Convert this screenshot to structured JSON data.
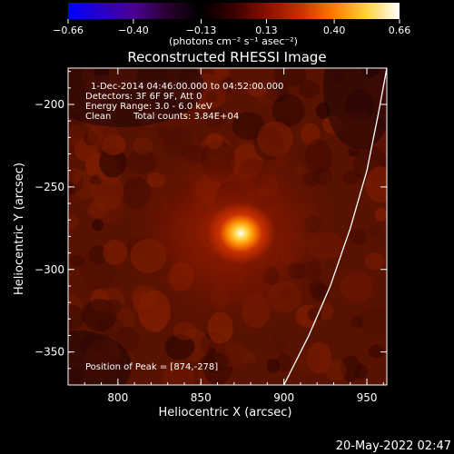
{
  "chart_data": {
    "type": "heatmap",
    "title": "Reconstructed RHESSI Image",
    "xlabel": "Heliocentric X (arcsec)",
    "ylabel": "Heliocentric Y (arcsec)",
    "xlim": [
      770,
      962
    ],
    "ylim": [
      -370,
      -178
    ],
    "x_ticks": [
      800,
      850,
      900,
      950
    ],
    "x_tick_labels": [
      "800",
      "850",
      "900",
      "950"
    ],
    "y_ticks": [
      -200,
      -250,
      -300,
      -350
    ],
    "y_tick_labels": [
      "−200",
      "−250",
      "−300",
      "−350"
    ],
    "colorbar": {
      "range": [
        -0.66,
        0.66
      ],
      "tick_values": [
        -0.66,
        -0.4,
        -0.13,
        0.13,
        0.4,
        0.66
      ],
      "tick_labels": [
        "−0.66",
        "−0.40",
        "−0.13",
        "0.13",
        "0.40",
        "0.66"
      ],
      "unit_label": "(photons cm⁻² s⁻¹ asec⁻²)",
      "colormap": [
        "#0000ff",
        "#2a00c8",
        "#4b0090",
        "#2a0030",
        "#000000",
        "#3a0000",
        "#8a1000",
        "#c83000",
        "#ff7a00",
        "#ffd23c",
        "#ffffff"
      ]
    },
    "annotations": [
      "1-Dec-2014 04:46:00.000 to 04:52:00.000",
      "Detectors: 3F 6F 9F, Att 0",
      "Energy Range: 3.0 - 6.0 keV",
      "Clean",
      "Total counts: 3.84E+04",
      "Position of Peak = [874,-278]"
    ],
    "peak": {
      "x": 874,
      "y": -278
    },
    "limb_curve": [
      [
        900,
        -370
      ],
      [
        915,
        -340
      ],
      [
        928,
        -310
      ],
      [
        940,
        -275
      ],
      [
        950,
        -240
      ],
      [
        957,
        -205
      ],
      [
        962,
        -178
      ]
    ],
    "colors": {
      "background": "#000000",
      "image_base": "#5a1200",
      "limb": "#ffffff"
    }
  },
  "footer_timestamp": "20-May-2022 02:47"
}
